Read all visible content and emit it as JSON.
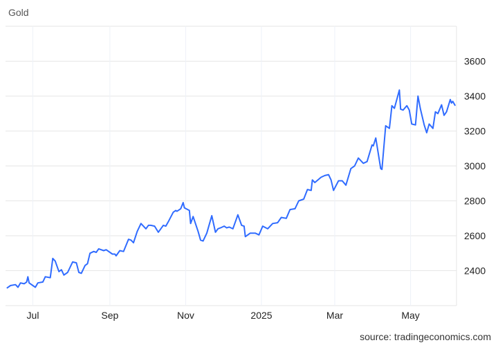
{
  "chart_data": {
    "type": "line",
    "title": "Gold",
    "source": "source: tradingeconomics.com",
    "xlabel": "",
    "ylabel": "",
    "ylim": [
      2200,
      3800
    ],
    "y_ticks": [
      2400,
      2600,
      2800,
      3000,
      3200,
      3400,
      3600
    ],
    "x_ticks": [
      {
        "label": "Jul",
        "date": "2024-07-01"
      },
      {
        "label": "Sep",
        "date": "2024-09-01"
      },
      {
        "label": "Nov",
        "date": "2024-11-01"
      },
      {
        "label": "2025",
        "date": "2025-01-01"
      },
      {
        "label": "Mar",
        "date": "2025-03-01"
      },
      {
        "label": "May",
        "date": "2025-05-01"
      }
    ],
    "xlim": [
      "2024-06-09",
      "2025-06-07"
    ],
    "grid": true,
    "y_axis_side": "right",
    "line_color": "#2f6bff",
    "series": [
      {
        "points": [
          [
            "2024-06-10",
            2300
          ],
          [
            "2024-06-13",
            2315
          ],
          [
            "2024-06-17",
            2320
          ],
          [
            "2024-06-19",
            2305
          ],
          [
            "2024-06-21",
            2330
          ],
          [
            "2024-06-24",
            2325
          ],
          [
            "2024-06-26",
            2335
          ],
          [
            "2024-06-27",
            2365
          ],
          [
            "2024-06-28",
            2330
          ],
          [
            "2024-07-01",
            2315
          ],
          [
            "2024-07-03",
            2305
          ],
          [
            "2024-07-05",
            2330
          ],
          [
            "2024-07-09",
            2335
          ],
          [
            "2024-07-11",
            2365
          ],
          [
            "2024-07-15",
            2360
          ],
          [
            "2024-07-16",
            2415
          ],
          [
            "2024-07-17",
            2470
          ],
          [
            "2024-07-19",
            2455
          ],
          [
            "2024-07-22",
            2395
          ],
          [
            "2024-07-24",
            2405
          ],
          [
            "2024-07-26",
            2375
          ],
          [
            "2024-07-29",
            2390
          ],
          [
            "2024-08-02",
            2450
          ],
          [
            "2024-08-05",
            2445
          ],
          [
            "2024-08-07",
            2390
          ],
          [
            "2024-08-09",
            2385
          ],
          [
            "2024-08-12",
            2430
          ],
          [
            "2024-08-14",
            2440
          ],
          [
            "2024-08-16",
            2500
          ],
          [
            "2024-08-19",
            2510
          ],
          [
            "2024-08-21",
            2505
          ],
          [
            "2024-08-23",
            2525
          ],
          [
            "2024-08-27",
            2515
          ],
          [
            "2024-08-29",
            2520
          ],
          [
            "2024-09-03",
            2495
          ],
          [
            "2024-09-05",
            2495
          ],
          [
            "2024-09-06",
            2485
          ],
          [
            "2024-09-09",
            2515
          ],
          [
            "2024-09-12",
            2510
          ],
          [
            "2024-09-16",
            2580
          ],
          [
            "2024-09-18",
            2575
          ],
          [
            "2024-09-20",
            2560
          ],
          [
            "2024-09-23",
            2625
          ],
          [
            "2024-09-26",
            2670
          ],
          [
            "2024-09-30",
            2640
          ],
          [
            "2024-10-02",
            2660
          ],
          [
            "2024-10-04",
            2660
          ],
          [
            "2024-10-07",
            2655
          ],
          [
            "2024-10-10",
            2620
          ],
          [
            "2024-10-14",
            2660
          ],
          [
            "2024-10-16",
            2655
          ],
          [
            "2024-10-18",
            2680
          ],
          [
            "2024-10-22",
            2735
          ],
          [
            "2024-10-24",
            2745
          ],
          [
            "2024-10-25",
            2740
          ],
          [
            "2024-10-28",
            2755
          ],
          [
            "2024-10-30",
            2790
          ],
          [
            "2024-10-31",
            2760
          ],
          [
            "2024-11-04",
            2745
          ],
          [
            "2024-11-05",
            2670
          ],
          [
            "2024-11-07",
            2710
          ],
          [
            "2024-11-11",
            2625
          ],
          [
            "2024-11-13",
            2575
          ],
          [
            "2024-11-15",
            2570
          ],
          [
            "2024-11-18",
            2615
          ],
          [
            "2024-11-22",
            2715
          ],
          [
            "2024-11-25",
            2620
          ],
          [
            "2024-11-27",
            2640
          ],
          [
            "2024-11-29",
            2645
          ],
          [
            "2024-12-02",
            2655
          ],
          [
            "2024-12-04",
            2645
          ],
          [
            "2024-12-06",
            2650
          ],
          [
            "2024-12-09",
            2640
          ],
          [
            "2024-12-11",
            2680
          ],
          [
            "2024-12-13",
            2720
          ],
          [
            "2024-12-16",
            2660
          ],
          [
            "2024-12-18",
            2655
          ],
          [
            "2024-12-19",
            2595
          ],
          [
            "2024-12-23",
            2615
          ],
          [
            "2024-12-27",
            2615
          ],
          [
            "2024-12-30",
            2605
          ],
          [
            "2025-01-02",
            2655
          ],
          [
            "2025-01-06",
            2640
          ],
          [
            "2025-01-10",
            2670
          ],
          [
            "2025-01-14",
            2675
          ],
          [
            "2025-01-17",
            2705
          ],
          [
            "2025-01-21",
            2700
          ],
          [
            "2025-01-24",
            2750
          ],
          [
            "2025-01-28",
            2755
          ],
          [
            "2025-01-31",
            2800
          ],
          [
            "2025-02-04",
            2810
          ],
          [
            "2025-02-07",
            2865
          ],
          [
            "2025-02-10",
            2860
          ],
          [
            "2025-02-11",
            2920
          ],
          [
            "2025-02-13",
            2905
          ],
          [
            "2025-02-18",
            2935
          ],
          [
            "2025-02-21",
            2945
          ],
          [
            "2025-02-24",
            2950
          ],
          [
            "2025-02-26",
            2920
          ],
          [
            "2025-02-28",
            2860
          ],
          [
            "2025-03-04",
            2915
          ],
          [
            "2025-03-07",
            2915
          ],
          [
            "2025-03-10",
            2890
          ],
          [
            "2025-03-14",
            2985
          ],
          [
            "2025-03-17",
            3000
          ],
          [
            "2025-03-20",
            3045
          ],
          [
            "2025-03-24",
            3015
          ],
          [
            "2025-03-27",
            3025
          ],
          [
            "2025-03-31",
            3120
          ],
          [
            "2025-04-01",
            3115
          ],
          [
            "2025-04-03",
            3160
          ],
          [
            "2025-04-07",
            2985
          ],
          [
            "2025-04-08",
            2980
          ],
          [
            "2025-04-11",
            3230
          ],
          [
            "2025-04-14",
            3215
          ],
          [
            "2025-04-16",
            3345
          ],
          [
            "2025-04-18",
            3330
          ],
          [
            "2025-04-22",
            3435
          ],
          [
            "2025-04-23",
            3325
          ],
          [
            "2025-04-25",
            3320
          ],
          [
            "2025-04-28",
            3345
          ],
          [
            "2025-04-30",
            3320
          ],
          [
            "2025-05-02",
            3240
          ],
          [
            "2025-05-05",
            3235
          ],
          [
            "2025-05-07",
            3400
          ],
          [
            "2025-05-09",
            3325
          ],
          [
            "2025-05-12",
            3235
          ],
          [
            "2025-05-14",
            3190
          ],
          [
            "2025-05-16",
            3240
          ],
          [
            "2025-05-19",
            3215
          ],
          [
            "2025-05-21",
            3310
          ],
          [
            "2025-05-23",
            3300
          ],
          [
            "2025-05-26",
            3350
          ],
          [
            "2025-05-28",
            3290
          ],
          [
            "2025-05-30",
            3310
          ],
          [
            "2025-06-02",
            3380
          ],
          [
            "2025-06-03",
            3360
          ],
          [
            "2025-06-04",
            3370
          ],
          [
            "2025-06-06",
            3345
          ]
        ]
      }
    ]
  }
}
